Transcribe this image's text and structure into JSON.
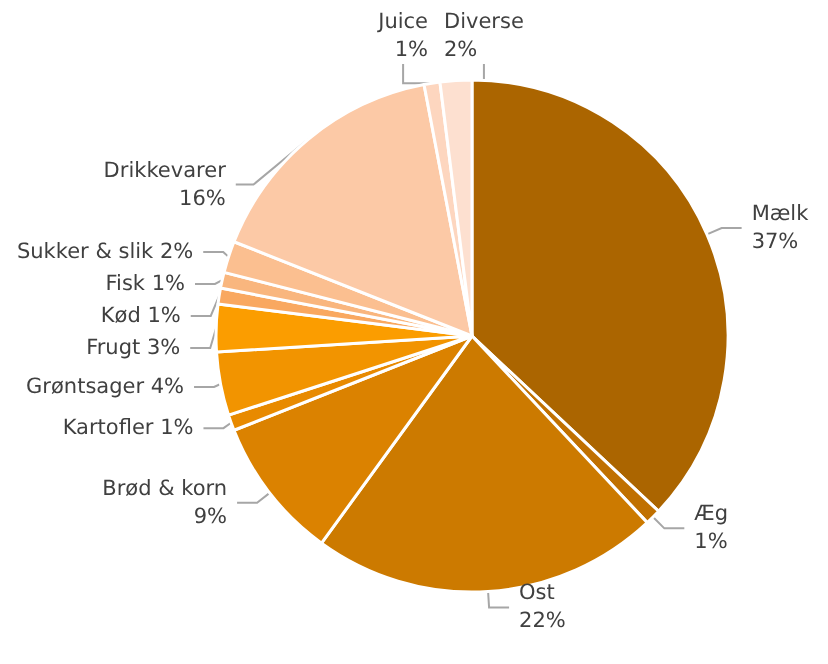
{
  "chart_data": {
    "type": "pie",
    "categories": [
      "Mælk",
      "Æg",
      "Ost",
      "Brød & korn",
      "Kartofler",
      "Grøntsager",
      "Frugt",
      "Kød",
      "Fisk",
      "Sukker & slik",
      "Drikkevarer",
      "Juice",
      "Diverse"
    ],
    "values": [
      37,
      1,
      22,
      9,
      1,
      4,
      3,
      1,
      1,
      2,
      16,
      1,
      2
    ],
    "value_labels": [
      "37%",
      "1%",
      "22%",
      "9%",
      "1%",
      "4%",
      "3%",
      "1%",
      "1%",
      "2%",
      "16%",
      "1%",
      "2%"
    ],
    "colors": [
      "#ab6500",
      "#c07000",
      "#cc7a00",
      "#db8200",
      "#e88a00",
      "#f29400",
      "#fb9d00",
      "#f9a860",
      "#f9b67e",
      "#fbbf90",
      "#fcc9a6",
      "#fdd6bf",
      "#fde0d0"
    ],
    "legend": false
  }
}
